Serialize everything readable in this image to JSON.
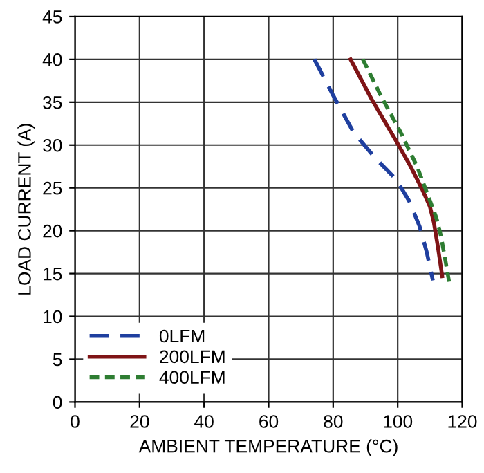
{
  "chart_data": {
    "type": "line",
    "xlabel": "AMBIENT TEMPERATURE (°C)",
    "ylabel": "LOAD CURRENT (A)",
    "xlim": [
      0,
      120
    ],
    "ylim": [
      0,
      45
    ],
    "xticks": [
      0,
      20,
      40,
      60,
      80,
      100,
      120
    ],
    "yticks": [
      0,
      5,
      10,
      15,
      20,
      25,
      30,
      35,
      40,
      45
    ],
    "grid": true,
    "legend": "bottom left",
    "series": [
      {
        "name": "0LFM",
        "color": "#1f3f9f",
        "line_style": "dashed",
        "x": [
          74.2,
          80,
          86.3,
          93,
          99.5,
          103.5,
          106.8,
          109,
          110.9
        ],
        "values": [
          40,
          35.8,
          31.5,
          28.5,
          26,
          23.5,
          20.5,
          17.5,
          14.2
        ]
      },
      {
        "name": "200LFM",
        "color": "#7f1416",
        "line_style": "solid",
        "x": [
          85.4,
          92,
          99.5,
          104,
          107.5,
          110,
          111.2,
          112.5,
          113.8
        ],
        "values": [
          40,
          35.3,
          30.5,
          27.5,
          24.9,
          22.8,
          21,
          18,
          14.7
        ]
      },
      {
        "name": "400LFM",
        "color": "#2e7d32",
        "line_style": "dotted",
        "x": [
          89.2,
          95,
          100.9,
          106,
          109.7,
          112,
          113.4,
          114.8,
          116
        ],
        "values": [
          40,
          35.6,
          31.5,
          27.5,
          23.8,
          21.5,
          19.4,
          16.5,
          13.9
        ]
      }
    ]
  }
}
